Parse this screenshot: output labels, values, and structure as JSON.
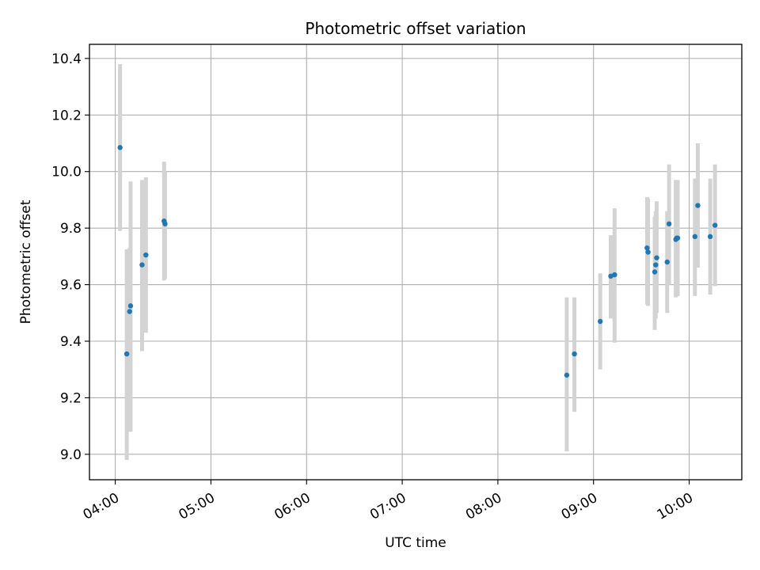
{
  "chart_data": {
    "type": "scatter",
    "title": "Photometric offset variation",
    "xlabel": "UTC time",
    "ylabel": "Photometric offset",
    "x_axis": {
      "unit": "UTC time (decimal hours)",
      "range": [
        3.73,
        10.55
      ],
      "ticks": [
        4,
        5,
        6,
        7,
        8,
        9,
        10
      ],
      "tick_labels": [
        "04:00",
        "05:00",
        "06:00",
        "07:00",
        "08:00",
        "09:00",
        "10:00"
      ],
      "tick_label_rotation_deg": -30
    },
    "y_axis": {
      "range": [
        8.91,
        10.45
      ],
      "ticks": [
        9.0,
        9.2,
        9.4,
        9.6,
        9.8,
        10.0,
        10.2,
        10.4
      ],
      "tick_labels": [
        "9.0",
        "9.2",
        "9.4",
        "9.6",
        "9.8",
        "10.0",
        "10.2",
        "10.4"
      ]
    },
    "grid": true,
    "legend": "none",
    "colors": {
      "point": "#1f77b4",
      "errorbar": "#d3d3d3"
    },
    "points": [
      {
        "x": 4.05,
        "y": 10.085,
        "lo": 9.79,
        "hi": 10.38
      },
      {
        "x": 4.12,
        "y": 9.355,
        "lo": 8.98,
        "hi": 9.725
      },
      {
        "x": 4.15,
        "y": 9.505,
        "lo": 9.08,
        "hi": 9.73
      },
      {
        "x": 4.16,
        "y": 9.525,
        "lo": 9.08,
        "hi": 9.965
      },
      {
        "x": 4.28,
        "y": 9.67,
        "lo": 9.365,
        "hi": 9.97
      },
      {
        "x": 4.32,
        "y": 9.705,
        "lo": 9.43,
        "hi": 9.98
      },
      {
        "x": 4.51,
        "y": 9.825,
        "lo": 9.615,
        "hi": 10.035
      },
      {
        "x": 4.52,
        "y": 9.815,
        "lo": 9.62,
        "hi": 10.0
      },
      {
        "x": 8.72,
        "y": 9.28,
        "lo": 9.01,
        "hi": 9.555
      },
      {
        "x": 8.8,
        "y": 9.355,
        "lo": 9.15,
        "hi": 9.555
      },
      {
        "x": 9.07,
        "y": 9.47,
        "lo": 9.3,
        "hi": 9.64
      },
      {
        "x": 9.18,
        "y": 9.63,
        "lo": 9.48,
        "hi": 9.775
      },
      {
        "x": 9.22,
        "y": 9.635,
        "lo": 9.395,
        "hi": 9.87
      },
      {
        "x": 9.56,
        "y": 9.73,
        "lo": 9.53,
        "hi": 9.91
      },
      {
        "x": 9.57,
        "y": 9.715,
        "lo": 9.525,
        "hi": 9.905
      },
      {
        "x": 9.64,
        "y": 9.645,
        "lo": 9.44,
        "hi": 9.84
      },
      {
        "x": 9.65,
        "y": 9.67,
        "lo": 9.48,
        "hi": 9.86
      },
      {
        "x": 9.66,
        "y": 9.695,
        "lo": 9.5,
        "hi": 9.895
      },
      {
        "x": 9.77,
        "y": 9.68,
        "lo": 9.5,
        "hi": 9.86
      },
      {
        "x": 9.79,
        "y": 9.815,
        "lo": 9.6,
        "hi": 10.025
      },
      {
        "x": 9.86,
        "y": 9.76,
        "lo": 9.555,
        "hi": 9.97
      },
      {
        "x": 9.87,
        "y": 9.765,
        "lo": 9.56,
        "hi": 9.97
      },
      {
        "x": 9.88,
        "y": 9.765,
        "lo": 9.56,
        "hi": 9.97
      },
      {
        "x": 10.06,
        "y": 9.77,
        "lo": 9.56,
        "hi": 9.975
      },
      {
        "x": 10.09,
        "y": 9.88,
        "lo": 9.66,
        "hi": 10.1
      },
      {
        "x": 10.22,
        "y": 9.77,
        "lo": 9.565,
        "hi": 9.975
      },
      {
        "x": 10.27,
        "y": 9.81,
        "lo": 9.595,
        "hi": 10.025
      }
    ]
  }
}
